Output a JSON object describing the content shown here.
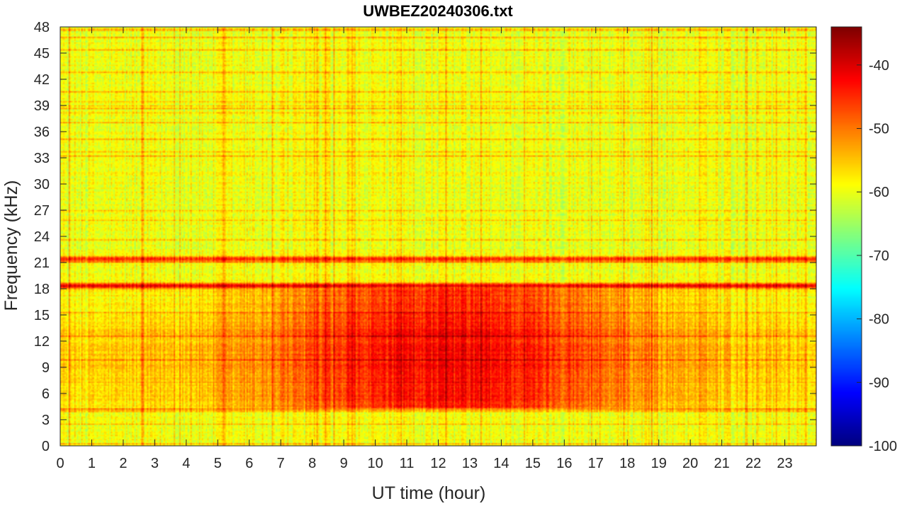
{
  "chart_data": {
    "type": "heatmap",
    "title": "UWBEZ20240306.txt",
    "xlabel": "UT time (hour)",
    "ylabel": "Frequency (kHz)",
    "xlim": [
      0,
      24
    ],
    "ylim": [
      0,
      48
    ],
    "x_ticks": [
      "0",
      "1",
      "2",
      "3",
      "4",
      "5",
      "6",
      "7",
      "8",
      "9",
      "10",
      "11",
      "12",
      "13",
      "14",
      "15",
      "16",
      "17",
      "18",
      "19",
      "20",
      "21",
      "22",
      "23"
    ],
    "y_ticks": [
      "0",
      "3",
      "6",
      "9",
      "12",
      "15",
      "18",
      "21",
      "24",
      "27",
      "30",
      "33",
      "36",
      "39",
      "42",
      "45",
      "48"
    ],
    "colormap": "jet",
    "color_range": [
      -100,
      -34
    ],
    "colorbar_ticks": [
      "-40",
      "-50",
      "-60",
      "-70",
      "-80",
      "-90",
      "-100"
    ],
    "grid": false,
    "features": [
      {
        "freq_khz": 18.3,
        "level_db": -42
      },
      {
        "freq_khz": 21.4,
        "level_db": -44
      },
      {
        "freq_khz": 24.9,
        "level_db": -58
      },
      {
        "freq_khz": 4.0,
        "level_db": -52
      }
    ]
  },
  "colors": {
    "axis": "#262626",
    "background": "#ffffff"
  }
}
